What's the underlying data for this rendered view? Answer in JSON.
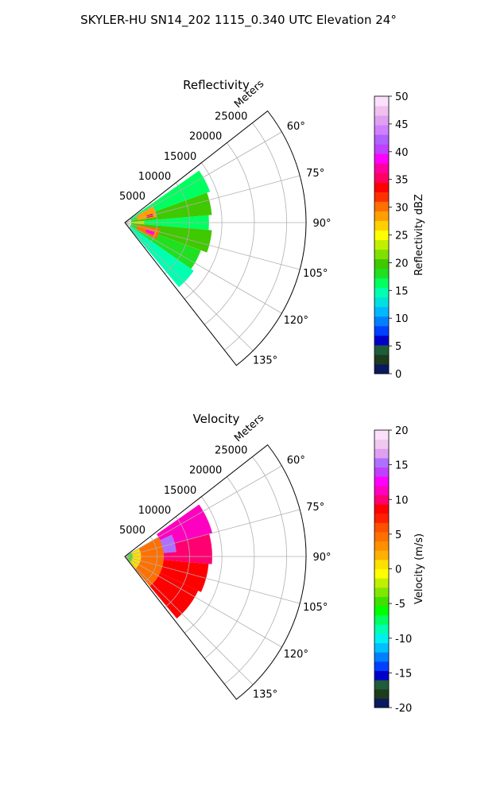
{
  "figure_title": "SKYLER-HU  SN14_202  1115_0.340 UTC Elevation 24°",
  "colors": {
    "reflectivity_scale": [
      "#0b1a5e",
      "#1d3c1d",
      "#1f5c3a",
      "#0000c8",
      "#0040ff",
      "#0080ff",
      "#00b8ff",
      "#00e0e0",
      "#00ffb0",
      "#00ff60",
      "#20e020",
      "#40c800",
      "#80e000",
      "#c0f000",
      "#ffff00",
      "#ffd000",
      "#ffa000",
      "#ff7000",
      "#ff3000",
      "#ff0000",
      "#ff0060",
      "#ff00a0",
      "#ff00ff",
      "#c040ff",
      "#b060ff",
      "#d080ff",
      "#e0a0f0",
      "#f0c0f0",
      "#fae0fa"
    ],
    "velocity_scale": [
      "#0b1a5e",
      "#1d3c1d",
      "#1f5c3a",
      "#0000c8",
      "#0040ff",
      "#0080ff",
      "#00c0ff",
      "#00f0f0",
      "#00ffb0",
      "#00ff60",
      "#00ff00",
      "#40e000",
      "#80e800",
      "#c0f000",
      "#ffff00",
      "#ffe000",
      "#ffb000",
      "#ff9000",
      "#ff7000",
      "#ff5000",
      "#ff2000",
      "#ff0000",
      "#ff0070",
      "#ff00c0",
      "#ff00ff",
      "#c040ff",
      "#b070ff",
      "#e0a0f0",
      "#f0c8f0",
      "#fae0fa"
    ],
    "grid": "#b0b0b0"
  },
  "chart_data": [
    {
      "type": "polar-sector",
      "title": "Reflectivity",
      "range_axis_label": "Meters",
      "range_ticks": [
        "5000",
        "10000",
        "15000",
        "20000",
        "25000"
      ],
      "range_values": [
        5000,
        10000,
        15000,
        20000,
        25000
      ],
      "range_max": 28000,
      "azimuth_ticks": [
        "60°",
        "75°",
        "90°",
        "105°",
        "120°",
        "135°"
      ],
      "azimuth_values": [
        60,
        75,
        90,
        105,
        120,
        135
      ],
      "azimuth_range": [
        52,
        142
      ],
      "data_extent": {
        "azimuth": [
          55,
          142
        ],
        "range_max_m": 14000
      },
      "colorbar": {
        "label": "Reflectivity dBZ",
        "ticks": [
          "0",
          "5",
          "10",
          "15",
          "20",
          "25",
          "30",
          "35",
          "40",
          "45",
          "50"
        ],
        "range": [
          0,
          50
        ]
      },
      "sectors": [
        {
          "az": [
            55,
            70
          ],
          "r": [
            1000,
            14000
          ],
          "value": 16
        },
        {
          "az": [
            70,
            85
          ],
          "r": [
            1000,
            13500
          ],
          "value": 19
        },
        {
          "az": [
            85,
            95
          ],
          "r": [
            1000,
            13000
          ],
          "value": 17
        },
        {
          "az": [
            95,
            110
          ],
          "r": [
            1000,
            13500
          ],
          "value": 20
        },
        {
          "az": [
            110,
            125
          ],
          "r": [
            1000,
            12500
          ],
          "value": 18
        },
        {
          "az": [
            125,
            140
          ],
          "r": [
            1000,
            13000
          ],
          "value": 15
        },
        {
          "az": [
            60,
            80
          ],
          "r": [
            2000,
            5000
          ],
          "value": 28
        },
        {
          "az": [
            72,
            78
          ],
          "r": [
            3500,
            4500
          ],
          "value": 36
        },
        {
          "az": [
            100,
            118
          ],
          "r": [
            2000,
            5500
          ],
          "value": 30
        },
        {
          "az": [
            108,
            114
          ],
          "r": [
            3500,
            4800
          ],
          "value": 38
        },
        {
          "az": [
            85,
            95
          ],
          "r": [
            800,
            3000
          ],
          "value": 24
        }
      ]
    },
    {
      "type": "polar-sector",
      "title": "Velocity",
      "range_axis_label": "Meters",
      "range_ticks": [
        "5000",
        "10000",
        "15000",
        "20000",
        "25000"
      ],
      "range_values": [
        5000,
        10000,
        15000,
        20000,
        25000
      ],
      "range_max": 28000,
      "azimuth_ticks": [
        "60°",
        "75°",
        "90°",
        "105°",
        "120°",
        "135°"
      ],
      "azimuth_values": [
        60,
        75,
        90,
        105,
        120,
        135
      ],
      "azimuth_range": [
        52,
        142
      ],
      "data_extent": {
        "azimuth": [
          55,
          142
        ],
        "range_max_m": 14000
      },
      "colorbar": {
        "label": "Velocity (m/s)",
        "ticks": [
          "-20",
          "-15",
          "-10",
          "-5",
          "0",
          "5",
          "10",
          "15",
          "20"
        ],
        "range": [
          -20,
          20
        ]
      },
      "sectors": [
        {
          "az": [
            55,
            75
          ],
          "r": [
            6000,
            14000
          ],
          "value": 11
        },
        {
          "az": [
            75,
            95
          ],
          "r": [
            6000,
            13500
          ],
          "value": 10
        },
        {
          "az": [
            95,
            115
          ],
          "r": [
            6000,
            13000
          ],
          "value": 9
        },
        {
          "az": [
            115,
            140
          ],
          "r": [
            6000,
            12500
          ],
          "value": 8
        },
        {
          "az": [
            65,
            85
          ],
          "r": [
            4000,
            8000
          ],
          "value": 15
        },
        {
          "az": [
            60,
            140
          ],
          "r": [
            2500,
            6000
          ],
          "value": 4
        },
        {
          "az": [
            60,
            140
          ],
          "r": [
            1200,
            2500
          ],
          "value": 1
        },
        {
          "az": [
            60,
            140
          ],
          "r": [
            300,
            1200
          ],
          "value": -5
        }
      ]
    }
  ]
}
